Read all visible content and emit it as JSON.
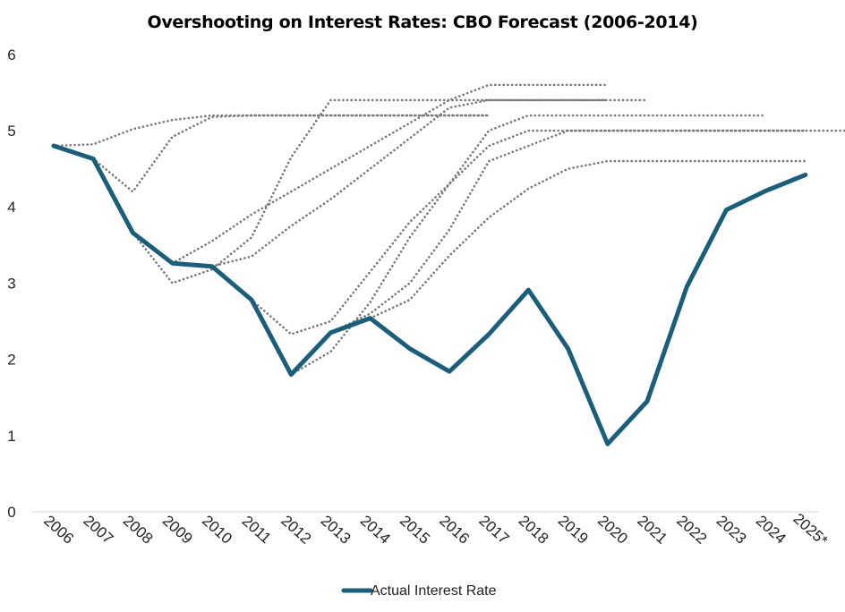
{
  "chart_data": {
    "type": "line",
    "title": "Overshooting on Interest Rates: CBO Forecast (2006-2014)",
    "xlabel": "",
    "ylabel": "",
    "categories": [
      "2006",
      "2007",
      "2008",
      "2009",
      "2010",
      "2011",
      "2012",
      "2013",
      "2014",
      "2015",
      "2016",
      "2017",
      "2018",
      "2019",
      "2020",
      "2021",
      "2022",
      "2023",
      "2024",
      "2025*"
    ],
    "ylim": [
      0,
      6
    ],
    "yticks": [
      "0",
      "1",
      "2",
      "3",
      "4",
      "5",
      "6"
    ],
    "grid": false,
    "legend_position": "bottom",
    "series": [
      {
        "name": "Actual Interest Rate",
        "color": "#1b5e7a",
        "style": "solid",
        "values": [
          4.8,
          4.63,
          3.66,
          3.26,
          3.22,
          2.78,
          1.8,
          2.35,
          2.54,
          2.14,
          1.84,
          2.33,
          2.91,
          2.14,
          0.89,
          1.45,
          2.95,
          3.96,
          4.21,
          4.42
        ]
      }
    ],
    "forecasts": [
      {
        "color": "#777777",
        "style": "dotted",
        "start_index": 0,
        "values": [
          4.8,
          4.82,
          5.02,
          5.14,
          5.2,
          5.2,
          5.2,
          5.2,
          5.2,
          5.2,
          5.2,
          5.2
        ]
      },
      {
        "color": "#777777",
        "style": "dotted",
        "start_index": 1,
        "values": [
          4.63,
          4.2,
          4.92,
          5.18,
          5.2,
          5.2,
          5.2,
          5.2,
          5.2,
          5.2,
          5.2
        ]
      },
      {
        "color": "#777777",
        "style": "dotted",
        "start_index": 2,
        "values": [
          3.66,
          3.0,
          3.18,
          3.6,
          4.65,
          5.4,
          5.4,
          5.4,
          5.4,
          5.4,
          5.4,
          5.4,
          5.4
        ]
      },
      {
        "color": "#777777",
        "style": "dotted",
        "start_index": 3,
        "values": [
          3.26,
          3.55,
          3.9,
          4.2,
          4.5,
          4.8,
          5.1,
          5.4,
          5.6,
          5.6,
          5.6,
          5.6
        ]
      },
      {
        "color": "#777777",
        "style": "dotted",
        "start_index": 4,
        "values": [
          3.22,
          3.35,
          3.75,
          4.1,
          4.5,
          4.9,
          5.3,
          5.4,
          5.4,
          5.4,
          5.4,
          5.4
        ]
      },
      {
        "color": "#777777",
        "style": "dotted",
        "start_index": 5,
        "values": [
          2.78,
          2.33,
          2.5,
          3.15,
          3.8,
          4.3,
          5.0,
          5.2,
          5.2,
          5.2,
          5.2,
          5.2,
          5.2,
          5.2
        ]
      },
      {
        "color": "#777777",
        "style": "dotted",
        "start_index": 6,
        "values": [
          1.8,
          2.1,
          2.75,
          3.6,
          4.3,
          4.8,
          5.0,
          5.0,
          5.0,
          5.0,
          5.0,
          5.0,
          5.0,
          5.0,
          5.0
        ]
      },
      {
        "color": "#777777",
        "style": "dotted",
        "start_index": 7,
        "values": [
          2.35,
          2.6,
          3.0,
          3.7,
          4.6,
          4.8,
          5.0,
          5.0,
          5.0,
          5.0,
          5.0,
          5.0,
          5.0
        ]
      },
      {
        "color": "#777777",
        "style": "dotted",
        "start_index": 8,
        "values": [
          2.54,
          2.78,
          3.36,
          3.86,
          4.24,
          4.5,
          4.6,
          4.6,
          4.6,
          4.6,
          4.6,
          4.6
        ]
      }
    ]
  }
}
